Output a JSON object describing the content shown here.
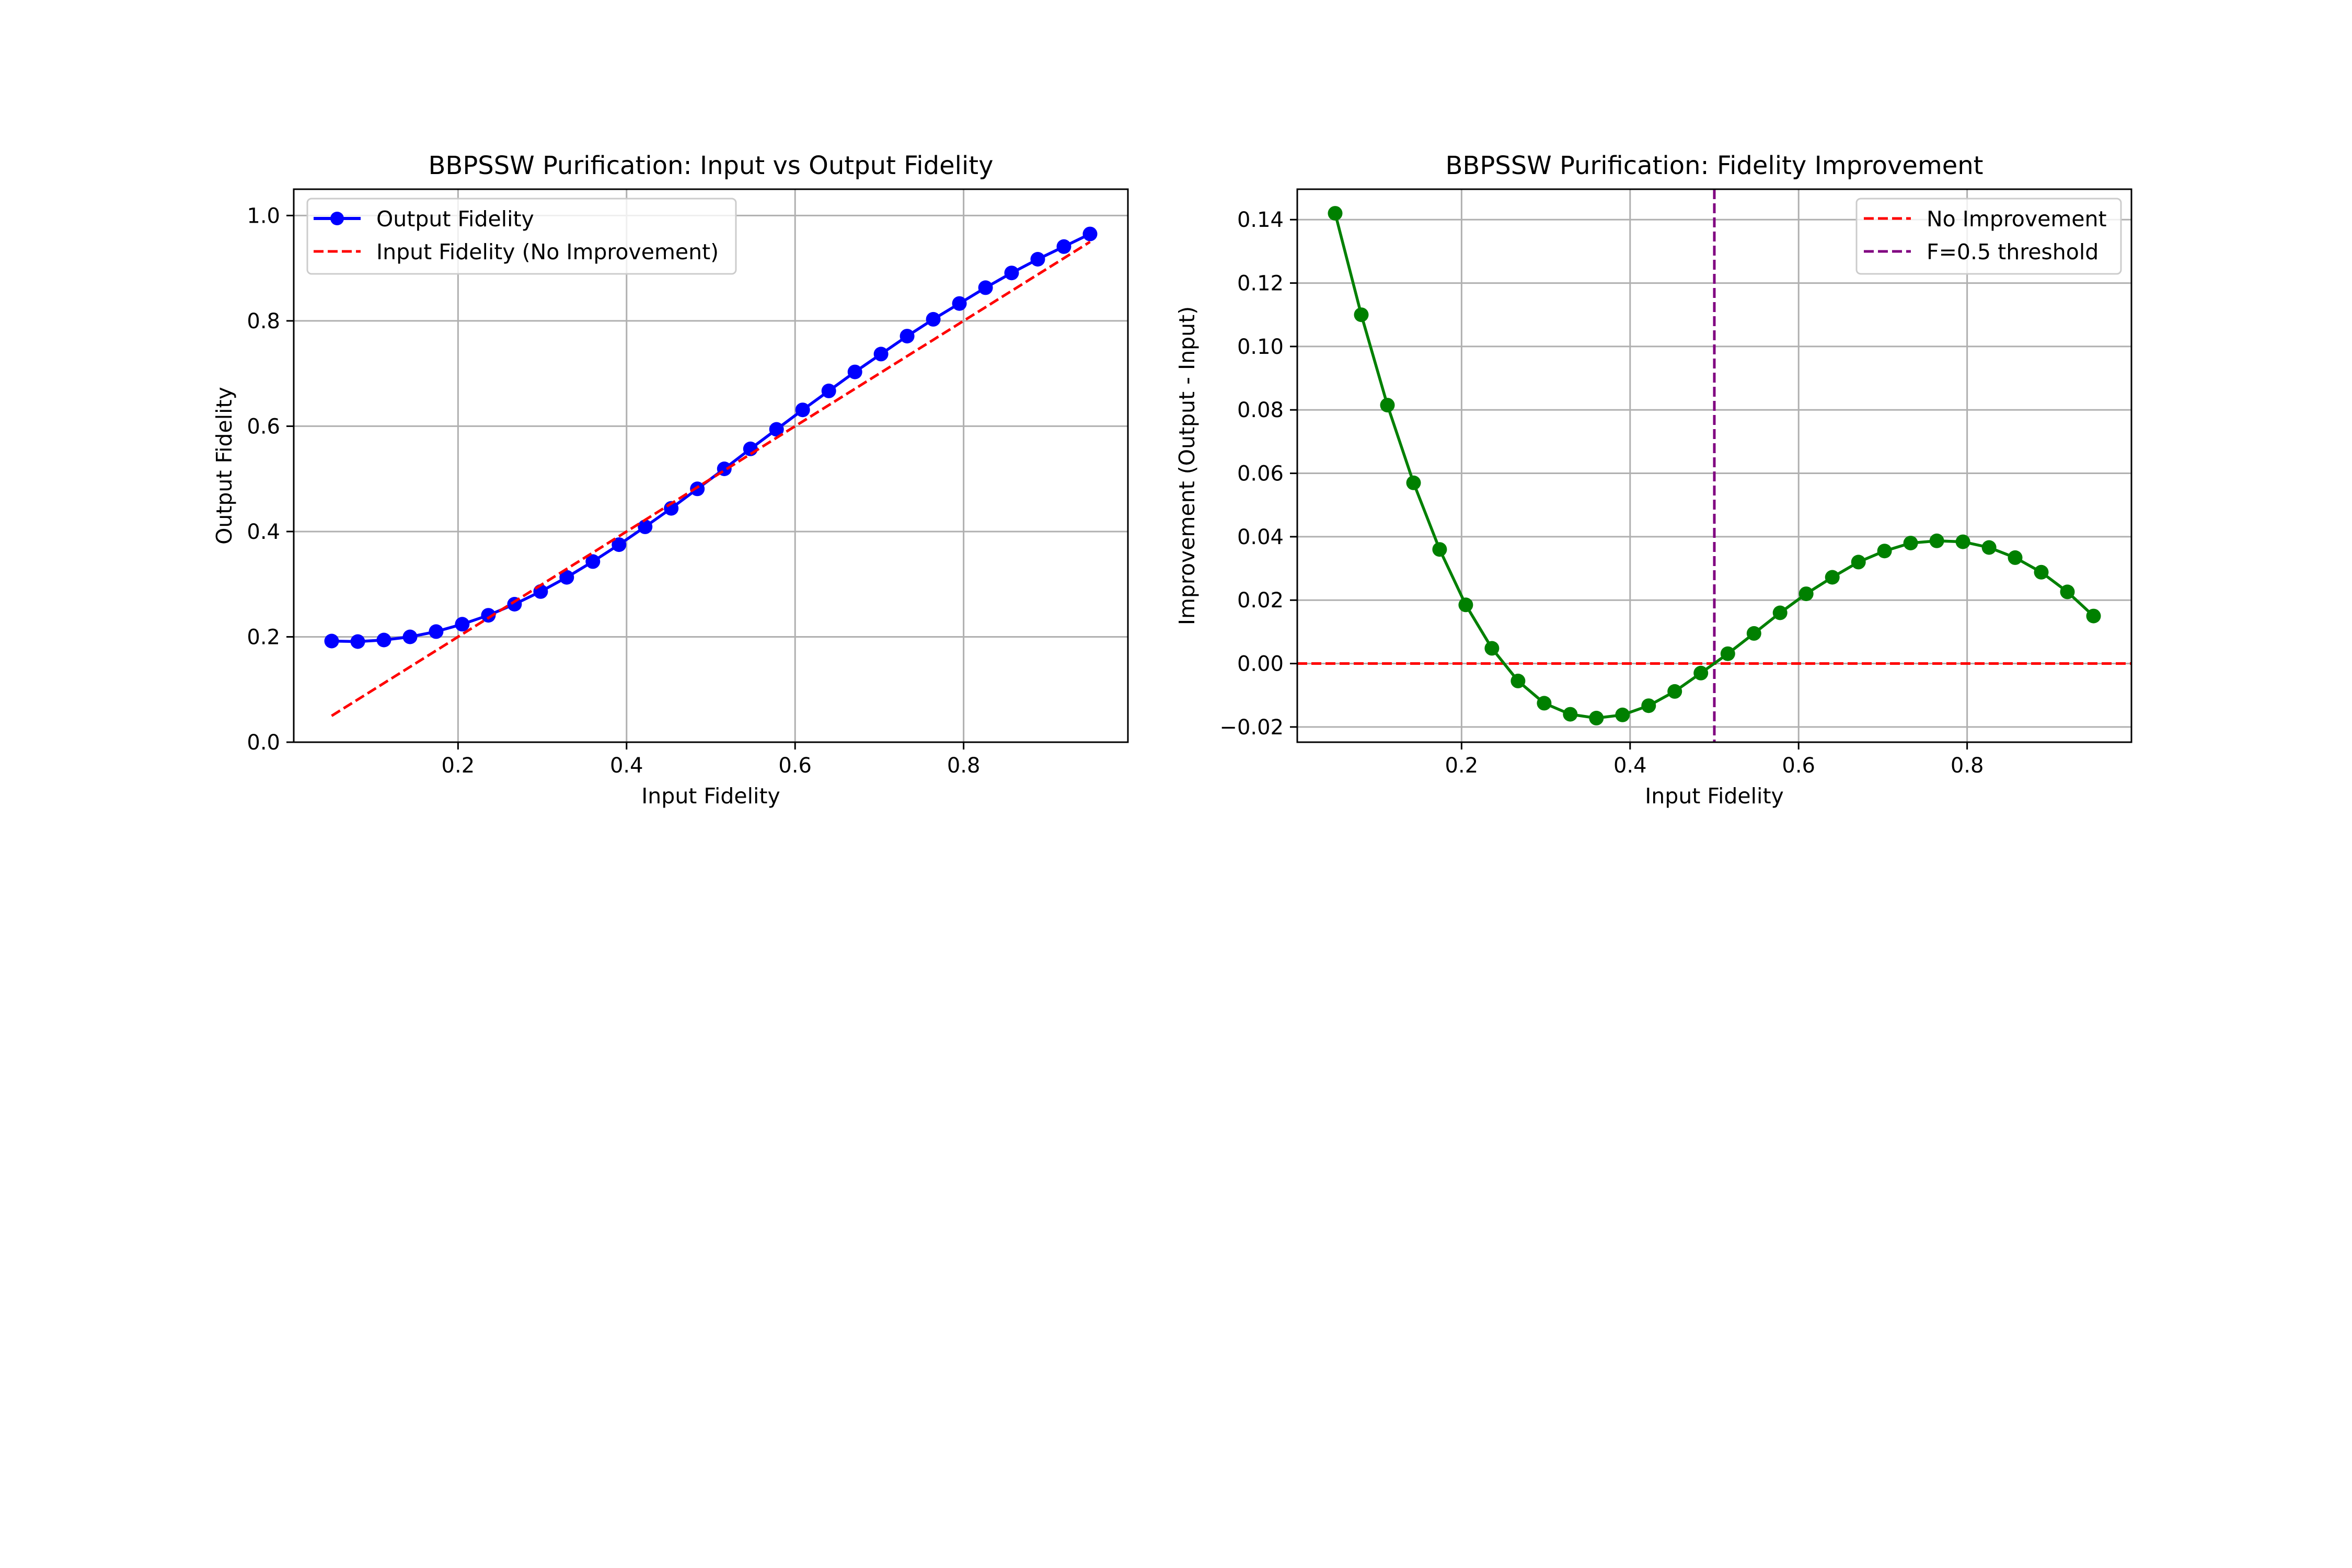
{
  "figure": {
    "background": "#ffffff"
  },
  "chart_data": [
    {
      "type": "line",
      "title": "BBPSSW Purification: Input vs Output Fidelity",
      "xlabel": "Input Fidelity",
      "ylabel": "Output Fidelity",
      "xlim": [
        0.005,
        0.995
      ],
      "ylim": [
        0.0,
        1.05
      ],
      "xticks": [
        0.2,
        0.4,
        0.6,
        0.8
      ],
      "xtick_labels": [
        "0.2",
        "0.4",
        "0.6",
        "0.8"
      ],
      "yticks": [
        0.0,
        0.2,
        0.4,
        0.6,
        0.8,
        1.0
      ],
      "ytick_labels": [
        "0.0",
        "0.2",
        "0.4",
        "0.6",
        "0.8",
        "1.0"
      ],
      "grid": true,
      "legend_position": "upper-left",
      "x": [
        0.05,
        0.081,
        0.112,
        0.143,
        0.174,
        0.205,
        0.236,
        0.267,
        0.298,
        0.329,
        0.36,
        0.391,
        0.422,
        0.453,
        0.484,
        0.516,
        0.547,
        0.578,
        0.609,
        0.64,
        0.671,
        0.702,
        0.733,
        0.764,
        0.795,
        0.826,
        0.857,
        0.888,
        0.919,
        0.95
      ],
      "series": [
        {
          "name": "Output Fidelity",
          "color": "#0000ff",
          "style": "solid",
          "marker": "circle",
          "values": [
            0.192,
            0.191,
            0.194,
            0.2,
            0.21,
            0.224,
            0.241,
            0.262,
            0.286,
            0.313,
            0.343,
            0.375,
            0.409,
            0.444,
            0.481,
            0.519,
            0.557,
            0.594,
            0.631,
            0.667,
            0.703,
            0.737,
            0.771,
            0.803,
            0.833,
            0.863,
            0.891,
            0.917,
            0.941,
            0.965
          ]
        },
        {
          "name": "Input Fidelity (No Improvement)",
          "color": "#ff0000",
          "style": "dashed",
          "marker": "none",
          "values": [
            0.05,
            0.081,
            0.112,
            0.143,
            0.174,
            0.205,
            0.236,
            0.267,
            0.298,
            0.329,
            0.36,
            0.391,
            0.422,
            0.453,
            0.484,
            0.516,
            0.547,
            0.578,
            0.609,
            0.64,
            0.671,
            0.702,
            0.733,
            0.764,
            0.795,
            0.826,
            0.857,
            0.888,
            0.919,
            0.95
          ]
        }
      ]
    },
    {
      "type": "line",
      "title": "BBPSSW Purification: Fidelity Improvement",
      "xlabel": "Input Fidelity",
      "ylabel": "Improvement (Output - Input)",
      "xlim": [
        0.005,
        0.995
      ],
      "ylim": [
        -0.0248,
        0.1496
      ],
      "xticks": [
        0.2,
        0.4,
        0.6,
        0.8
      ],
      "xtick_labels": [
        "0.2",
        "0.4",
        "0.6",
        "0.8"
      ],
      "yticks": [
        -0.02,
        0.0,
        0.02,
        0.04,
        0.06,
        0.08,
        0.1,
        0.12,
        0.14
      ],
      "ytick_labels": [
        "−0.02",
        "0.00",
        "0.02",
        "0.04",
        "0.06",
        "0.08",
        "0.10",
        "0.12",
        "0.14"
      ],
      "grid": true,
      "legend_position": "upper-right",
      "x": [
        0.05,
        0.081,
        0.112,
        0.143,
        0.174,
        0.205,
        0.236,
        0.267,
        0.298,
        0.329,
        0.36,
        0.391,
        0.422,
        0.453,
        0.484,
        0.516,
        0.547,
        0.578,
        0.609,
        0.64,
        0.671,
        0.702,
        0.733,
        0.764,
        0.795,
        0.826,
        0.857,
        0.888,
        0.919,
        0.95
      ],
      "series": [
        {
          "name": "Improvement",
          "color": "#008000",
          "style": "solid",
          "marker": "circle",
          "in_legend": false,
          "values": [
            0.142,
            0.11,
            0.0815,
            0.057,
            0.036,
            0.0185,
            0.0048,
            -0.0055,
            -0.0125,
            -0.016,
            -0.0172,
            -0.0162,
            -0.0133,
            -0.0088,
            -0.003,
            0.0031,
            0.0095,
            0.016,
            0.022,
            0.0272,
            0.032,
            0.0355,
            0.038,
            0.0387,
            0.0384,
            0.0366,
            0.0334,
            0.0288,
            0.0226,
            0.015
          ]
        }
      ],
      "reference_lines": [
        {
          "name": "No Improvement",
          "orientation": "horizontal",
          "value": 0.0,
          "color": "#ff0000",
          "style": "dashed"
        },
        {
          "name": "F=0.5 threshold",
          "orientation": "vertical",
          "value": 0.5,
          "color": "#800080",
          "style": "dashed"
        }
      ]
    }
  ]
}
